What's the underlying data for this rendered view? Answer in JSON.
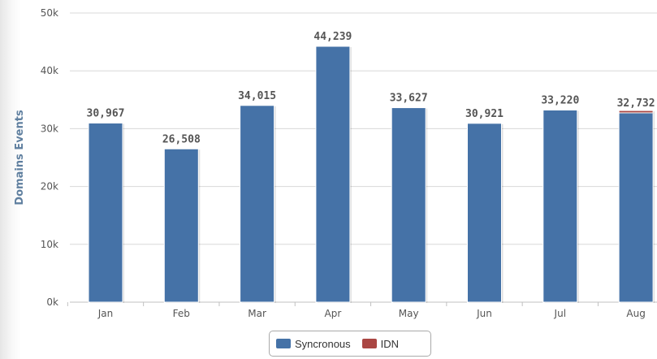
{
  "chart_data": {
    "type": "bar",
    "ylabel": "Domains Events",
    "xlabel": "",
    "title": "",
    "categories": [
      "Jan",
      "Feb",
      "Mar",
      "Apr",
      "May",
      "Jun",
      "Jul",
      "Aug"
    ],
    "series": [
      {
        "name": "Syncronous",
        "color": "#4572a7",
        "values": [
          30967,
          26508,
          34015,
          44239,
          33627,
          30921,
          33220,
          32732
        ]
      },
      {
        "name": "IDN",
        "color": "#aa4643",
        "values": [
          0,
          0,
          0,
          0,
          0,
          0,
          0,
          400
        ]
      }
    ],
    "data_labels": [
      "30,967",
      "26,508",
      "34,015",
      "44,239",
      "33,627",
      "30,921",
      "33,220",
      "32,732"
    ],
    "yticks": [
      "0k",
      "10k",
      "20k",
      "30k",
      "40k",
      "50k"
    ],
    "ylim": [
      0,
      50000
    ],
    "grid": true,
    "legend": "bottom-center"
  }
}
